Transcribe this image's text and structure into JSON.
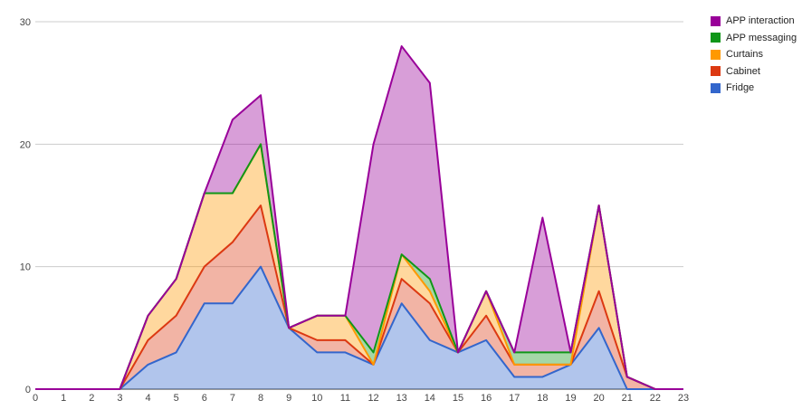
{
  "chart_data": {
    "type": "area",
    "stacked": true,
    "x": [
      0,
      1,
      2,
      3,
      4,
      5,
      6,
      7,
      8,
      9,
      10,
      11,
      12,
      13,
      14,
      15,
      16,
      17,
      18,
      19,
      20,
      21,
      22,
      23
    ],
    "ylim": [
      0,
      30
    ],
    "yticks": [
      0,
      10,
      20,
      30
    ],
    "grid": true,
    "legend_position": "right",
    "series": [
      {
        "name": "Fridge",
        "color": "#3366cc",
        "values": [
          0,
          0,
          0,
          0,
          2,
          3,
          7,
          7,
          10,
          5,
          3,
          3,
          2,
          7,
          4,
          3,
          4,
          1,
          1,
          2,
          5,
          0,
          0,
          0
        ]
      },
      {
        "name": "Cabinet",
        "color": "#dc3912",
        "values": [
          0,
          0,
          0,
          0,
          2,
          3,
          3,
          5,
          5,
          0,
          1,
          1,
          0,
          2,
          3,
          0,
          2,
          1,
          1,
          0,
          3,
          1,
          0,
          0
        ]
      },
      {
        "name": "Curtains",
        "color": "#ff9900",
        "values": [
          0,
          0,
          0,
          0,
          2,
          3,
          6,
          4,
          5,
          0,
          2,
          2,
          0,
          2,
          1,
          0,
          2,
          0,
          0,
          0,
          7,
          0,
          0,
          0
        ]
      },
      {
        "name": "APP messaging",
        "color": "#109618",
        "values": [
          0,
          0,
          0,
          0,
          0,
          0,
          0,
          0,
          0,
          0,
          0,
          0,
          1,
          0,
          1,
          0,
          0,
          1,
          1,
          1,
          0,
          0,
          0,
          0
        ]
      },
      {
        "name": "APP interaction",
        "color": "#990099",
        "values": [
          0,
          0,
          0,
          0,
          0,
          0,
          0,
          6,
          4,
          0,
          0,
          0,
          17,
          17,
          16,
          0,
          0,
          0,
          11,
          0,
          0,
          0,
          0,
          0
        ]
      }
    ]
  },
  "legend_order": [
    "APP interaction",
    "APP messaging",
    "Curtains",
    "Cabinet",
    "Fridge"
  ]
}
